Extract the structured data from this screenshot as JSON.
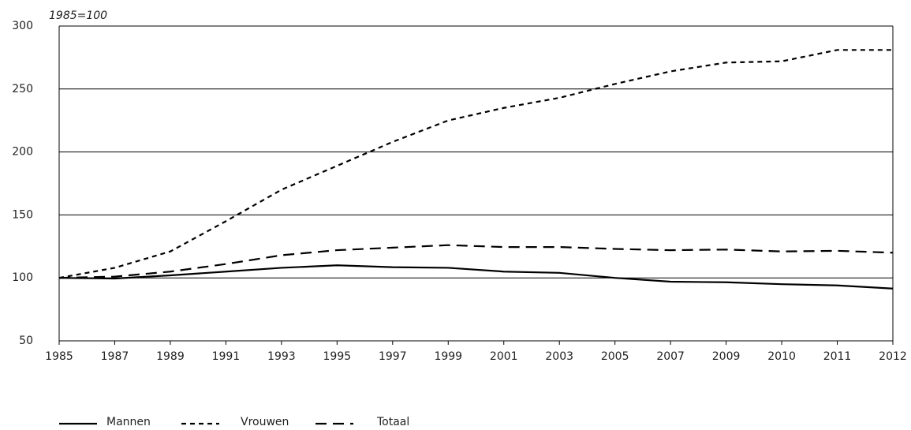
{
  "chart_data": {
    "type": "line",
    "annotation": "1985=100",
    "categories": [
      "1985",
      "1987",
      "1989",
      "1991",
      "1993",
      "1995",
      "1997",
      "1999",
      "2001",
      "2003",
      "2005",
      "2007",
      "2009",
      "2010",
      "2011",
      "2012"
    ],
    "series": [
      {
        "name": "Mannen",
        "color": "#000000",
        "dash": "solid",
        "values": [
          100,
          99.5,
          102,
          105,
          108,
          110,
          108.5,
          108,
          105,
          104,
          100,
          97,
          96.5,
          95,
          94,
          91.5
        ]
      },
      {
        "name": "Vrouwen",
        "color": "#000000",
        "dash": "short",
        "values": [
          100,
          108,
          121,
          145,
          170,
          189,
          208,
          225,
          235,
          243,
          254,
          264,
          271,
          272,
          281,
          281
        ]
      },
      {
        "name": "Totaal",
        "color": "#000000",
        "dash": "long",
        "values": [
          100,
          101,
          105,
          111,
          118,
          122,
          124,
          126,
          124.5,
          124.5,
          123,
          122,
          122.5,
          121,
          121.5,
          120
        ]
      }
    ],
    "ylim": [
      50,
      300
    ],
    "yticks": [
      50,
      100,
      150,
      200,
      250,
      300
    ],
    "grid": true
  }
}
